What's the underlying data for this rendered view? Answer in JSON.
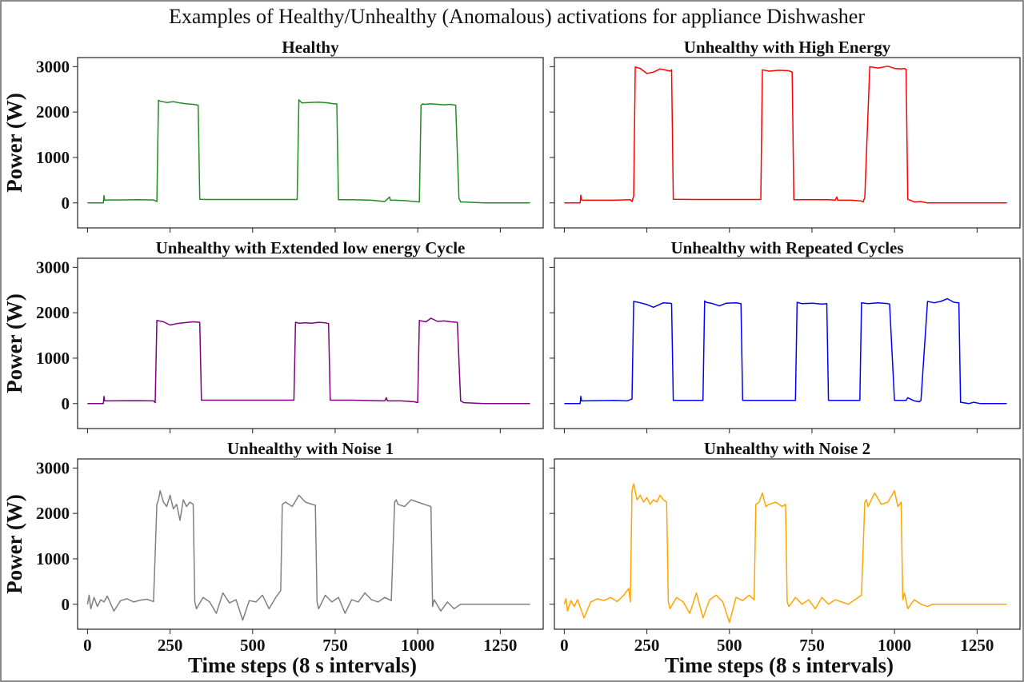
{
  "title": "Examples of Healthy/Unhealthy (Anomalous) activations for appliance Dishwasher",
  "xlabel": "Time steps (8 s intervals)",
  "ylabel": "Power (W)",
  "chart_data": [
    {
      "type": "line",
      "title": "Healthy",
      "color": "#228B22",
      "xlabel": "",
      "ylabel": "Power (W)",
      "xlim": [
        -30,
        1380
      ],
      "ylim": [
        -550,
        3200
      ],
      "xticks": [
        0,
        250,
        500,
        750,
        1000,
        1250
      ],
      "yticks": [
        0,
        1000,
        2000,
        3000
      ],
      "series": [
        {
          "x": [
            0,
            48,
            50,
            52,
            55,
            60,
            90,
            150,
            200,
            210,
            215,
            220,
            240,
            260,
            280,
            300,
            320,
            330,
            335,
            340,
            360,
            400,
            500,
            600,
            635,
            640,
            645,
            650,
            670,
            700,
            730,
            745,
            755,
            760,
            800,
            860,
            900,
            915,
            917,
            919,
            930,
            960,
            1005,
            1010,
            1015,
            1020,
            1040,
            1060,
            1080,
            1100,
            1115,
            1125,
            1130,
            1140,
            1200,
            1250,
            1340
          ],
          "y": [
            0,
            0,
            160,
            60,
            60,
            65,
            65,
            70,
            65,
            30,
            2260,
            2240,
            2210,
            2230,
            2200,
            2180,
            2170,
            2160,
            2150,
            80,
            75,
            75,
            75,
            75,
            75,
            2270,
            2230,
            2200,
            2210,
            2220,
            2200,
            2180,
            2180,
            70,
            70,
            60,
            30,
            130,
            60,
            60,
            60,
            50,
            20,
            2150,
            2180,
            2170,
            2180,
            2170,
            2160,
            2170,
            2150,
            100,
            20,
            20,
            0,
            0,
            0
          ]
        }
      ]
    },
    {
      "type": "line",
      "title": "Unhealthy with High Energy",
      "color": "#FF0000",
      "xlabel": "",
      "ylabel": "",
      "xlim": [
        -30,
        1380
      ],
      "ylim": [
        -550,
        3200
      ],
      "xticks": [
        0,
        250,
        500,
        750,
        1000,
        1250
      ],
      "yticks": [
        0,
        1000,
        2000,
        3000
      ],
      "series": [
        {
          "x": [
            0,
            48,
            50,
            52,
            55,
            150,
            200,
            205,
            210,
            215,
            230,
            250,
            270,
            290,
            310,
            320,
            325,
            330,
            400,
            500,
            590,
            595,
            600,
            620,
            650,
            680,
            690,
            695,
            700,
            800,
            820,
            825,
            828,
            830,
            870,
            900,
            905,
            910,
            925,
            950,
            980,
            1000,
            1020,
            1030,
            1035,
            1040,
            1060,
            1080,
            1100,
            1200,
            1340
          ],
          "y": [
            0,
            0,
            170,
            70,
            60,
            60,
            70,
            30,
            150,
            2990,
            2960,
            2850,
            2880,
            2950,
            2920,
            2900,
            2930,
            80,
            75,
            75,
            75,
            75,
            2930,
            2900,
            2920,
            2910,
            2880,
            70,
            70,
            70,
            60,
            130,
            60,
            60,
            60,
            40,
            20,
            120,
            3000,
            2970,
            3010,
            2960,
            2950,
            2960,
            2940,
            80,
            20,
            30,
            0,
            0,
            0
          ]
        }
      ]
    },
    {
      "type": "line",
      "title": "Unhealthy with Extended low energy Cycle",
      "color": "#800080",
      "xlabel": "",
      "ylabel": "Power (W)",
      "xlim": [
        -30,
        1380
      ],
      "ylim": [
        -550,
        3200
      ],
      "xticks": [
        0,
        250,
        500,
        750,
        1000,
        1250
      ],
      "yticks": [
        0,
        1000,
        2000,
        3000
      ],
      "series": [
        {
          "x": [
            0,
            48,
            50,
            52,
            55,
            150,
            200,
            205,
            210,
            230,
            250,
            270,
            290,
            320,
            340,
            345,
            400,
            500,
            600,
            625,
            630,
            640,
            660,
            680,
            700,
            720,
            730,
            735,
            800,
            900,
            905,
            908,
            910,
            950,
            990,
            1000,
            1005,
            1010,
            1025,
            1040,
            1060,
            1080,
            1100,
            1120,
            1130,
            1140,
            1200,
            1340
          ],
          "y": [
            0,
            0,
            160,
            60,
            60,
            65,
            60,
            20,
            1830,
            1800,
            1730,
            1760,
            1780,
            1800,
            1790,
            75,
            75,
            75,
            75,
            75,
            1790,
            1770,
            1780,
            1770,
            1790,
            1780,
            1760,
            75,
            75,
            60,
            130,
            60,
            60,
            60,
            40,
            20,
            1830,
            1820,
            1800,
            1880,
            1810,
            1820,
            1800,
            1790,
            60,
            20,
            0,
            0
          ]
        }
      ]
    },
    {
      "type": "line",
      "title": "Unhealthy with Repeated Cycles",
      "color": "#0000FF",
      "xlabel": "",
      "ylabel": "",
      "xlim": [
        -30,
        1380
      ],
      "ylim": [
        -550,
        3200
      ],
      "xticks": [
        0,
        250,
        500,
        750,
        1000,
        1250
      ],
      "yticks": [
        0,
        1000,
        2000,
        3000
      ],
      "series": [
        {
          "x": [
            0,
            48,
            50,
            52,
            55,
            150,
            190,
            205,
            210,
            230,
            250,
            270,
            300,
            320,
            325,
            330,
            380,
            420,
            425,
            430,
            450,
            470,
            490,
            520,
            535,
            540,
            600,
            680,
            700,
            705,
            720,
            750,
            780,
            795,
            800,
            880,
            895,
            900,
            920,
            950,
            980,
            985,
            1000,
            1030,
            1035,
            1040,
            1060,
            1075,
            1080,
            1100,
            1120,
            1140,
            1160,
            1180,
            1195,
            1200,
            1225,
            1240,
            1260,
            1340
          ],
          "y": [
            0,
            0,
            160,
            60,
            60,
            70,
            60,
            100,
            2250,
            2220,
            2180,
            2120,
            2220,
            2210,
            2200,
            70,
            70,
            70,
            2260,
            2230,
            2200,
            2150,
            2210,
            2220,
            2200,
            70,
            70,
            70,
            70,
            2230,
            2200,
            2210,
            2190,
            2200,
            70,
            70,
            70,
            2220,
            2200,
            2220,
            2200,
            2190,
            70,
            70,
            70,
            130,
            60,
            40,
            70,
            2250,
            2220,
            2250,
            2310,
            2230,
            2220,
            30,
            0,
            30,
            0,
            0
          ]
        }
      ]
    },
    {
      "type": "line",
      "title": "Unhealthy with Noise 1",
      "color": "#808080",
      "xlabel": "Time steps (8 s intervals)",
      "ylabel": "Power (W)",
      "xlim": [
        -30,
        1380
      ],
      "ylim": [
        -550,
        3200
      ],
      "xticks": [
        0,
        250,
        500,
        750,
        1000,
        1250
      ],
      "yticks": [
        0,
        1000,
        2000,
        3000
      ],
      "series": [
        {
          "x": [
            0,
            5,
            10,
            20,
            30,
            40,
            50,
            60,
            80,
            100,
            120,
            140,
            160,
            180,
            200,
            210,
            215,
            220,
            230,
            240,
            250,
            260,
            270,
            280,
            290,
            300,
            310,
            320,
            325,
            330,
            350,
            370,
            390,
            410,
            430,
            450,
            470,
            490,
            510,
            530,
            550,
            570,
            585,
            590,
            600,
            620,
            640,
            660,
            680,
            690,
            695,
            700,
            720,
            740,
            760,
            780,
            800,
            820,
            840,
            860,
            880,
            900,
            920,
            930,
            935,
            940,
            960,
            980,
            1000,
            1020,
            1040,
            1045,
            1050,
            1070,
            1090,
            1110,
            1130,
            1200,
            1340
          ],
          "y": [
            0,
            200,
            -100,
            150,
            -50,
            100,
            50,
            180,
            -150,
            80,
            120,
            50,
            90,
            110,
            60,
            2200,
            2300,
            2500,
            2250,
            2150,
            2400,
            2100,
            2200,
            1850,
            2300,
            2150,
            2250,
            2200,
            60,
            -100,
            150,
            50,
            -200,
            250,
            30,
            100,
            -350,
            80,
            50,
            200,
            -100,
            150,
            300,
            2200,
            2250,
            2150,
            2400,
            2250,
            2200,
            2180,
            50,
            -100,
            200,
            50,
            150,
            -200,
            100,
            50,
            250,
            100,
            50,
            150,
            80,
            2250,
            2300,
            2200,
            2150,
            2300,
            2250,
            2200,
            2150,
            -50,
            100,
            -150,
            50,
            -100,
            0,
            0,
            0
          ]
        }
      ]
    },
    {
      "type": "line",
      "title": "Unhealthy with Noise 2",
      "color": "#FFA500",
      "xlabel": "Time steps (8 s intervals)",
      "ylabel": "",
      "xlim": [
        -30,
        1380
      ],
      "ylim": [
        -550,
        3200
      ],
      "xticks": [
        0,
        250,
        500,
        750,
        1000,
        1250
      ],
      "yticks": [
        0,
        1000,
        2000,
        3000
      ],
      "series": [
        {
          "x": [
            0,
            5,
            10,
            20,
            30,
            40,
            60,
            80,
            100,
            120,
            140,
            160,
            180,
            195,
            200,
            205,
            210,
            220,
            230,
            240,
            250,
            260,
            270,
            280,
            290,
            300,
            310,
            315,
            320,
            340,
            360,
            380,
            400,
            420,
            440,
            460,
            480,
            500,
            520,
            540,
            560,
            575,
            580,
            590,
            600,
            610,
            620,
            640,
            660,
            670,
            675,
            680,
            700,
            720,
            740,
            760,
            780,
            800,
            820,
            840,
            860,
            880,
            900,
            910,
            915,
            920,
            940,
            960,
            980,
            1000,
            1010,
            1020,
            1025,
            1030,
            1040,
            1060,
            1080,
            1100,
            1115,
            1200,
            1340
          ],
          "y": [
            0,
            120,
            -150,
            80,
            -50,
            100,
            -300,
            50,
            120,
            80,
            150,
            60,
            200,
            350,
            50,
            2500,
            2650,
            2300,
            2400,
            2250,
            2350,
            2200,
            2300,
            2250,
            2400,
            2300,
            2250,
            60,
            -100,
            150,
            50,
            -200,
            250,
            -300,
            100,
            200,
            50,
            -400,
            150,
            80,
            200,
            100,
            2200,
            2250,
            2450,
            2150,
            2200,
            2250,
            2150,
            2200,
            50,
            -50,
            150,
            0,
            100,
            -100,
            150,
            0,
            100,
            50,
            0,
            100,
            200,
            2250,
            2300,
            2150,
            2450,
            2200,
            2250,
            2500,
            2150,
            2250,
            100,
            250,
            -100,
            100,
            0,
            -50,
            0,
            0,
            0
          ]
        }
      ]
    }
  ]
}
